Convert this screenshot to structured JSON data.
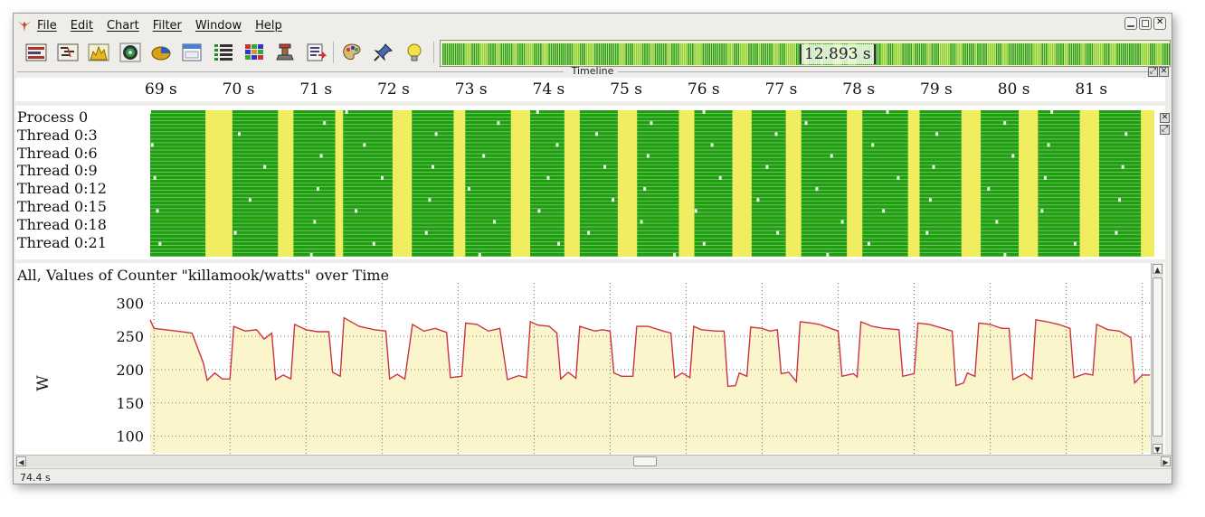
{
  "app": {
    "icon": "wings-logo-icon"
  },
  "menu": [
    "File",
    "Edit",
    "Chart",
    "Filter",
    "Window",
    "Help"
  ],
  "window_controls": [
    "minimize-icon",
    "restore-icon",
    "close-icon"
  ],
  "toolbar": {
    "buttons": [
      "timeline-view-icon",
      "gantt-view-icon",
      "histogram-icon",
      "disc-icon",
      "pie-chart-icon",
      "window-icon",
      "list-view-icon",
      "color-grid-icon",
      "stamp-icon",
      "export-icon",
      "palette-icon",
      "pin-icon",
      "lightbulb-icon"
    ]
  },
  "overview": {
    "time_label": "12.893 s"
  },
  "timeline": {
    "title": "Timeline",
    "ticks": [
      "69 s",
      "70 s",
      "71 s",
      "72 s",
      "73 s",
      "74 s",
      "75 s",
      "76 s",
      "77 s",
      "78 s",
      "79 s",
      "80 s",
      "81 s"
    ]
  },
  "threads": [
    "Process 0",
    "Thread 0:3",
    "Thread 0:6",
    "Thread 0:9",
    "Thread 0:12",
    "Thread 0:15",
    "Thread 0:18",
    "Thread 0:21"
  ],
  "colors": {
    "running": "#1f9e10",
    "idle": "#f0ee60",
    "line": "#cc3344",
    "fill": "#fbf5cc"
  },
  "counter_chart": {
    "title": "All, Values of Counter \"killamook/watts\" over Time",
    "ylabel": "W",
    "yticks": [
      "300",
      "250",
      "200",
      "150",
      "100"
    ]
  },
  "chart_data": {
    "type": "area",
    "title": "All, Values of Counter \"killamook/watts\" over Time",
    "ylabel": "W",
    "xlabel": "",
    "ylim": [
      75,
      310
    ],
    "xlim": [
      68.95,
      82.1
    ],
    "grid": true,
    "series": [
      {
        "values": [
          [
            68.95,
            275
          ],
          [
            69.0,
            262
          ],
          [
            69.3,
            258
          ],
          [
            69.5,
            255
          ],
          [
            69.65,
            210
          ],
          [
            69.7,
            184
          ],
          [
            69.8,
            195
          ],
          [
            69.9,
            186
          ],
          [
            70.0,
            186
          ],
          [
            70.05,
            265
          ],
          [
            70.2,
            258
          ],
          [
            70.35,
            260
          ],
          [
            70.45,
            246
          ],
          [
            70.55,
            255
          ],
          [
            70.6,
            185
          ],
          [
            70.7,
            192
          ],
          [
            70.8,
            186
          ],
          [
            70.85,
            268
          ],
          [
            71.0,
            260
          ],
          [
            71.15,
            257
          ],
          [
            71.3,
            257
          ],
          [
            71.35,
            196
          ],
          [
            71.45,
            190
          ],
          [
            71.5,
            278
          ],
          [
            71.7,
            265
          ],
          [
            71.9,
            260
          ],
          [
            72.05,
            258
          ],
          [
            72.1,
            186
          ],
          [
            72.2,
            193
          ],
          [
            72.3,
            186
          ],
          [
            72.4,
            268
          ],
          [
            72.55,
            258
          ],
          [
            72.7,
            262
          ],
          [
            72.85,
            256
          ],
          [
            72.9,
            188
          ],
          [
            73.05,
            190
          ],
          [
            73.1,
            270
          ],
          [
            73.25,
            268
          ],
          [
            73.4,
            258
          ],
          [
            73.55,
            262
          ],
          [
            73.65,
            185
          ],
          [
            73.8,
            191
          ],
          [
            73.9,
            188
          ],
          [
            73.95,
            272
          ],
          [
            74.05,
            267
          ],
          [
            74.2,
            265
          ],
          [
            74.3,
            255
          ],
          [
            74.35,
            186
          ],
          [
            74.45,
            196
          ],
          [
            74.55,
            187
          ],
          [
            74.6,
            265
          ],
          [
            74.8,
            258
          ],
          [
            74.9,
            260
          ],
          [
            75.0,
            258
          ],
          [
            75.05,
            195
          ],
          [
            75.15,
            190
          ],
          [
            75.3,
            190
          ],
          [
            75.35,
            265
          ],
          [
            75.5,
            265
          ],
          [
            75.7,
            258
          ],
          [
            75.8,
            255
          ],
          [
            75.85,
            188
          ],
          [
            75.95,
            195
          ],
          [
            76.05,
            188
          ],
          [
            76.1,
            265
          ],
          [
            76.2,
            260
          ],
          [
            76.4,
            258
          ],
          [
            76.5,
            258
          ],
          [
            76.55,
            175
          ],
          [
            76.65,
            176
          ],
          [
            76.7,
            195
          ],
          [
            76.8,
            190
          ],
          [
            76.85,
            264
          ],
          [
            77.0,
            262
          ],
          [
            77.1,
            258
          ],
          [
            77.2,
            260
          ],
          [
            77.25,
            194
          ],
          [
            77.35,
            196
          ],
          [
            77.45,
            182
          ],
          [
            77.5,
            272
          ],
          [
            77.65,
            270
          ],
          [
            77.75,
            268
          ],
          [
            77.9,
            262
          ],
          [
            78.0,
            258
          ],
          [
            78.05,
            190
          ],
          [
            78.2,
            194
          ],
          [
            78.25,
            189
          ],
          [
            78.3,
            272
          ],
          [
            78.45,
            265
          ],
          [
            78.6,
            262
          ],
          [
            78.8,
            260
          ],
          [
            78.85,
            190
          ],
          [
            79.0,
            194
          ],
          [
            79.05,
            270
          ],
          [
            79.2,
            268
          ],
          [
            79.35,
            263
          ],
          [
            79.5,
            258
          ],
          [
            79.55,
            176
          ],
          [
            79.65,
            180
          ],
          [
            79.7,
            195
          ],
          [
            79.8,
            190
          ],
          [
            79.85,
            270
          ],
          [
            80.0,
            268
          ],
          [
            80.15,
            262
          ],
          [
            80.25,
            262
          ],
          [
            80.3,
            185
          ],
          [
            80.45,
            194
          ],
          [
            80.55,
            186
          ],
          [
            80.6,
            275
          ],
          [
            80.75,
            272
          ],
          [
            80.9,
            268
          ],
          [
            81.05,
            262
          ],
          [
            81.1,
            188
          ],
          [
            81.25,
            194
          ],
          [
            81.35,
            192
          ],
          [
            81.4,
            268
          ],
          [
            81.55,
            260
          ],
          [
            81.7,
            258
          ],
          [
            81.85,
            248
          ],
          [
            81.9,
            180
          ],
          [
            82.0,
            192
          ],
          [
            82.1,
            192
          ]
        ]
      }
    ]
  },
  "status": {
    "text": "74.4 s"
  }
}
